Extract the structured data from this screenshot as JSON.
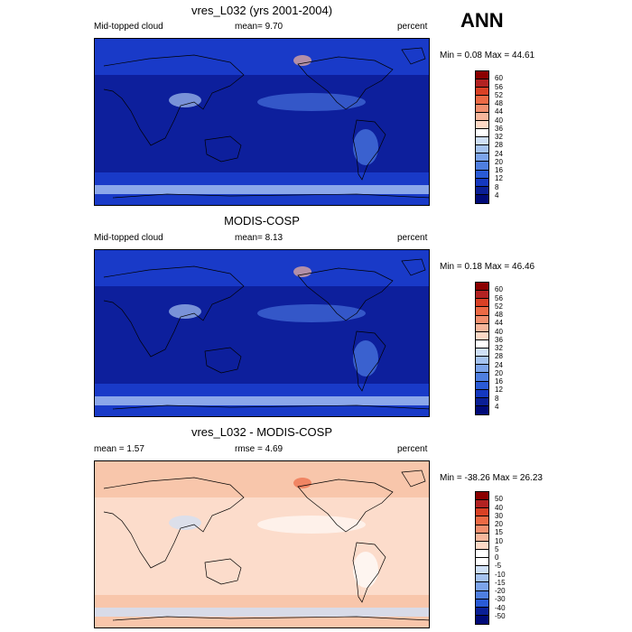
{
  "season": "ANN",
  "panels": [
    {
      "title": "vres_L032 (yrs 2001-2004)",
      "left_label": "Mid-topped cloud",
      "center_label": "mean=   9.70",
      "right_label": "percent",
      "stats": "Min =   0.08 Max =  44.61",
      "colorbar": {
        "labels": [
          "60",
          "56",
          "52",
          "48",
          "44",
          "40",
          "36",
          "32",
          "28",
          "24",
          "20",
          "16",
          "12",
          "8",
          "4"
        ],
        "colors": [
          "#8b0000",
          "#b22222",
          "#d94125",
          "#ec6a45",
          "#f28f6e",
          "#f7b79c",
          "#fcd9c6",
          "#ffffff",
          "#cfe0f7",
          "#a5c3f0",
          "#7ca4ea",
          "#4f7fe0",
          "#2a5bd6",
          "#1438c0",
          "#0a1f96",
          "#000a78"
        ]
      },
      "map_colors": {
        "base": "#0d1f9c",
        "mid": "#1c3fd0",
        "light": "#4f7de6",
        "pale": "#a8c3f2",
        "warm": "#f4b49a"
      }
    },
    {
      "title": "MODIS-COSP",
      "left_label": "Mid-topped cloud",
      "center_label": "mean=   8.13",
      "right_label": "percent",
      "stats": "Min =   0.18 Max =  46.46",
      "colorbar": {
        "labels": [
          "60",
          "56",
          "52",
          "48",
          "44",
          "40",
          "36",
          "32",
          "28",
          "24",
          "20",
          "16",
          "12",
          "8",
          "4"
        ],
        "colors": [
          "#8b0000",
          "#b22222",
          "#d94125",
          "#ec6a45",
          "#f28f6e",
          "#f7b79c",
          "#fcd9c6",
          "#ffffff",
          "#cfe0f7",
          "#a5c3f0",
          "#7ca4ea",
          "#4f7fe0",
          "#2a5bd6",
          "#1438c0",
          "#0a1f96",
          "#000a78"
        ]
      },
      "map_colors": {
        "base": "#0d1f9c",
        "mid": "#1c3fd0",
        "light": "#4f7de6",
        "pale": "#a8c3f2",
        "warm": "#f4b49a"
      }
    },
    {
      "title": "vres_L032 - MODIS-COSP",
      "left_label": "mean =   1.57",
      "center_label": "rmse =   4.69",
      "right_label": "percent",
      "stats": "Min = -38.26 Max =  26.23",
      "colorbar": {
        "labels": [
          "50",
          "40",
          "30",
          "20",
          "15",
          "10",
          "5",
          "0",
          "-5",
          "-10",
          "-15",
          "-20",
          "-30",
          "-40",
          "-50"
        ],
        "colors": [
          "#8b0000",
          "#b22222",
          "#d94125",
          "#ec6a45",
          "#f28f6e",
          "#f7b79c",
          "#fcd9c6",
          "#ffffff",
          "#ffffff",
          "#cfe0f7",
          "#a5c3f0",
          "#7ca4ea",
          "#4f7fe0",
          "#2a5bd6",
          "#0a1f96",
          "#000a78"
        ]
      },
      "map_colors": {
        "base": "#fcdccb",
        "mid": "#f7c2a6",
        "light": "#ffffff",
        "pale": "#cfe0f7",
        "warm": "#ec6a45"
      }
    }
  ]
}
